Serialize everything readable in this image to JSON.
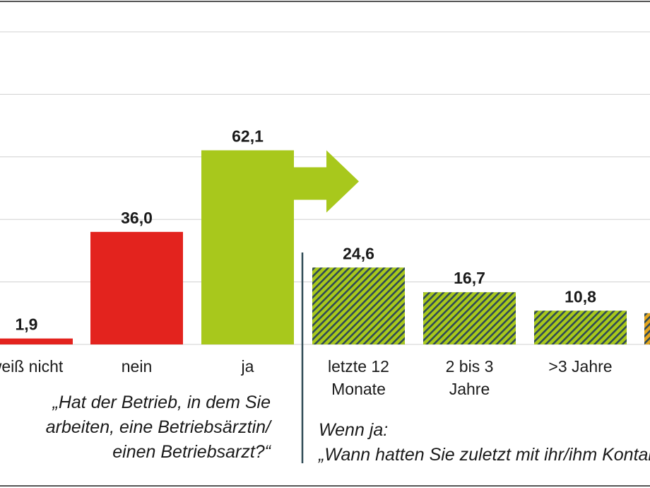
{
  "chart_data": {
    "type": "bar",
    "ylim": [
      0,
      70
    ],
    "grid": true,
    "left_group": {
      "question": [
        "„Hat der Betrieb, in dem Sie",
        "arbeiten, eine Betriebsärztin/",
        "einen Betriebsarzt?“"
      ],
      "bars": [
        {
          "label": [
            "weiß nicht"
          ],
          "value": 1.9,
          "value_label": "1,9",
          "color": "#e3231e"
        },
        {
          "label": [
            "nein"
          ],
          "value": 36.0,
          "value_label": "36,0",
          "color": "#e3231e"
        },
        {
          "label": [
            "ja"
          ],
          "value": 62.1,
          "value_label": "62,1",
          "color": "#a8c81c"
        }
      ]
    },
    "right_group": {
      "intro": "Wenn ja:",
      "question": "„Wann hatten Sie zuletzt mit ihr/ihm Kontakt?“",
      "bars": [
        {
          "label": [
            "letzte 12",
            "Monate"
          ],
          "value": 24.6,
          "value_label": "24,6",
          "color": "#a8c81c"
        },
        {
          "label": [
            "2 bis 3",
            "Jahre"
          ],
          "value": 16.7,
          "value_label": "16,7",
          "color": "#a8c81c"
        },
        {
          "label": [
            ">3 Jahre"
          ],
          "value": 10.8,
          "value_label": "10,8",
          "color": "#a8c81c"
        },
        {
          "label": [
            ""
          ],
          "value": 10.0,
          "value_label": "",
          "color": "#e3a51e"
        }
      ]
    },
    "colors": {
      "hatch_stripe": "#2f4a55",
      "grid": "#d0d0d0",
      "divider": "#2f4a55",
      "frame": "#555555"
    }
  }
}
